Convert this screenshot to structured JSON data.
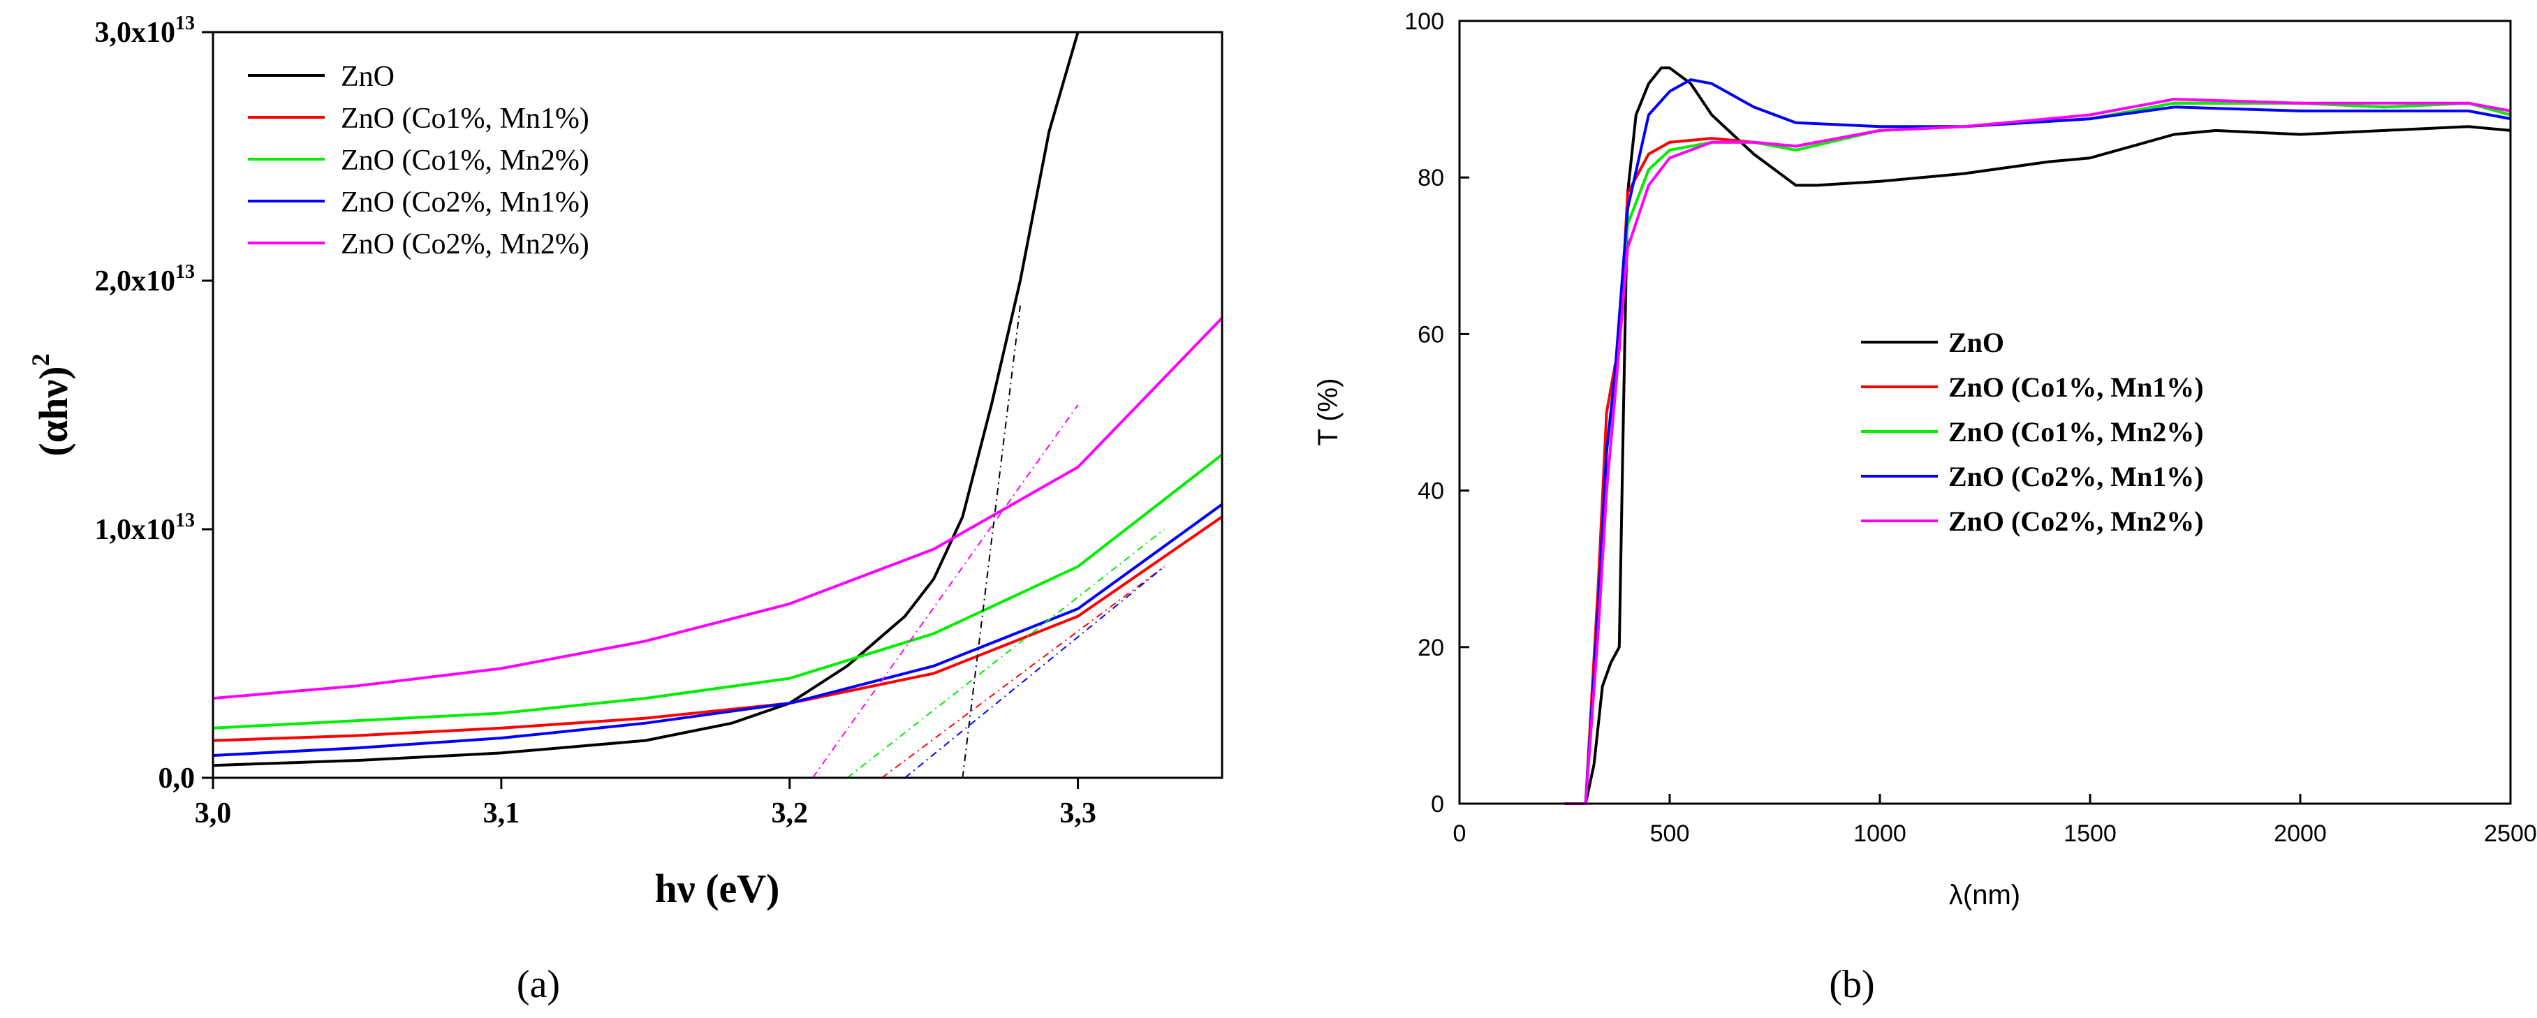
{
  "chart_data": [
    {
      "panel_label": "(a)",
      "type": "line",
      "title": "",
      "xlabel": "hν (eV)",
      "ylabel": "(αhν)",
      "ylabel_exponent": "2",
      "xlim": [
        3.0,
        3.35
      ],
      "ylim": [
        0,
        30000000000000.0
      ],
      "grid": false,
      "legend_position": "top-left",
      "x_ticks": [
        3.0,
        3.1,
        3.2,
        3.3
      ],
      "x_tick_labels": [
        "3,0",
        "3,1",
        "3,2",
        "3,3"
      ],
      "y_ticks": [
        0,
        10000000000000.0,
        20000000000000.0,
        30000000000000.0
      ],
      "y_tick_labels": [
        {
          "text": "0,0",
          "exp": ""
        },
        {
          "text": "1,0x10",
          "exp": "13"
        },
        {
          "text": "2,0x10",
          "exp": "13"
        },
        {
          "text": "3,0x10",
          "exp": "13"
        }
      ],
      "series": [
        {
          "name": "ZnO",
          "color": "#000000",
          "x": [
            3.0,
            3.05,
            3.1,
            3.15,
            3.18,
            3.2,
            3.22,
            3.24,
            3.25,
            3.26,
            3.27,
            3.28,
            3.29,
            3.3
          ],
          "y": [
            500000000000.0,
            700000000000.0,
            1000000000000.0,
            1500000000000.0,
            2200000000000.0,
            3000000000000.0,
            4500000000000.0,
            6500000000000.0,
            8000000000000.0,
            10500000000000.0,
            15000000000000.0,
            20000000000000.0,
            26000000000000.0,
            30000000000000.0
          ]
        },
        {
          "name": "ZnO (Co1%, Mn1%)",
          "color": "#ff0000",
          "x": [
            3.0,
            3.05,
            3.1,
            3.15,
            3.2,
            3.25,
            3.3,
            3.35
          ],
          "y": [
            1500000000000.0,
            1700000000000.0,
            2000000000000.0,
            2400000000000.0,
            3000000000000.0,
            4200000000000.0,
            6500000000000.0,
            10500000000000.0
          ]
        },
        {
          "name": "ZnO (Co1%, Mn2%)",
          "color": "#00ee00",
          "x": [
            3.0,
            3.05,
            3.1,
            3.15,
            3.2,
            3.25,
            3.3,
            3.35
          ],
          "y": [
            2000000000000.0,
            2300000000000.0,
            2600000000000.0,
            3200000000000.0,
            4000000000000.0,
            5800000000000.0,
            8500000000000.0,
            13000000000000.0
          ]
        },
        {
          "name": "ZnO (Co2%, Mn1%)",
          "color": "#0000ff",
          "x": [
            3.0,
            3.05,
            3.1,
            3.15,
            3.2,
            3.25,
            3.3,
            3.35
          ],
          "y": [
            900000000000.0,
            1200000000000.0,
            1600000000000.0,
            2200000000000.0,
            3000000000000.0,
            4500000000000.0,
            6800000000000.0,
            11000000000000.0
          ]
        },
        {
          "name": "ZnO (Co2%, Mn2%)",
          "color": "#ff00ff",
          "x": [
            3.0,
            3.05,
            3.1,
            3.15,
            3.2,
            3.25,
            3.3,
            3.35
          ],
          "y": [
            3200000000000.0,
            3700000000000.0,
            4400000000000.0,
            5500000000000.0,
            7000000000000.0,
            9200000000000.0,
            12500000000000.0,
            18500000000000.0
          ]
        }
      ],
      "tangent_lines": [
        {
          "name": "ZnO tangent",
          "color": "#000000",
          "x": [
            3.26,
            3.28
          ],
          "y": [
            0,
            19000000000000.0
          ]
        },
        {
          "name": "ZnO (Co1%, Mn1%) tangent",
          "color": "#ff0000",
          "x": [
            3.232,
            3.33
          ],
          "y": [
            0,
            8500000000000.0
          ]
        },
        {
          "name": "ZnO (Co1%, Mn2%) tangent",
          "color": "#00ee00",
          "x": [
            3.22,
            3.33
          ],
          "y": [
            0,
            10000000000000.0
          ]
        },
        {
          "name": "ZnO (Co2%, Mn1%) tangent",
          "color": "#0000ff",
          "x": [
            3.24,
            3.33
          ],
          "y": [
            0,
            8500000000000.0
          ]
        },
        {
          "name": "ZnO (Co2%, Mn2%) tangent",
          "color": "#ff00ff",
          "x": [
            3.208,
            3.3
          ],
          "y": [
            0,
            15000000000000.0
          ]
        }
      ]
    },
    {
      "panel_label": "(b)",
      "type": "line",
      "title": "",
      "xlabel": "λ(nm)",
      "ylabel": "T (%)",
      "xlim": [
        0,
        2500
      ],
      "ylim": [
        0,
        100
      ],
      "grid": false,
      "legend_position": "center-right",
      "x_ticks": [
        0,
        500,
        1000,
        1500,
        2000,
        2500
      ],
      "x_tick_labels": [
        "0",
        "500",
        "1000",
        "1500",
        "2000",
        "2500"
      ],
      "y_ticks": [
        0,
        20,
        40,
        60,
        80,
        100
      ],
      "y_tick_labels": [
        "0",
        "20",
        "40",
        "60",
        "80",
        "100"
      ],
      "series": [
        {
          "name": "ZnO",
          "color": "#000000",
          "x": [
            250,
            300,
            320,
            340,
            360,
            380,
            390,
            400,
            420,
            450,
            480,
            500,
            550,
            600,
            700,
            800,
            850,
            1000,
            1200,
            1400,
            1500,
            1600,
            1700,
            1800,
            2000,
            2200,
            2400,
            2500
          ],
          "y": [
            0,
            0,
            5,
            15,
            18,
            20,
            50,
            78,
            88,
            92,
            94,
            94,
            92,
            88,
            83,
            79,
            79,
            79.5,
            80.5,
            82,
            82.5,
            84,
            85.5,
            86,
            85.5,
            86,
            86.5,
            86
          ]
        },
        {
          "name": "ZnO (Co1%, Mn1%)",
          "color": "#ff0000",
          "x": [
            250,
            300,
            330,
            350,
            370,
            380,
            400,
            450,
            500,
            600,
            700,
            800,
            1000,
            1200,
            1500,
            1700,
            2000,
            2200,
            2400,
            2500
          ],
          "y": [
            0,
            0,
            28,
            50,
            56,
            58,
            78,
            83,
            84.5,
            85,
            84.5,
            84,
            86,
            86.5,
            87.5,
            89.5,
            89.5,
            89,
            89.5,
            88
          ]
        },
        {
          "name": "ZnO (Co1%, Mn2%)",
          "color": "#00ee00",
          "x": [
            250,
            300,
            330,
            350,
            370,
            400,
            450,
            500,
            600,
            700,
            800,
            1000,
            1200,
            1500,
            1700,
            2000,
            2200,
            2400,
            2500
          ],
          "y": [
            0,
            0,
            25,
            45,
            55,
            74,
            81,
            83.5,
            84.5,
            84.5,
            83.5,
            86,
            86.5,
            87.5,
            89.5,
            89.5,
            89,
            89.5,
            88
          ]
        },
        {
          "name": "ZnO (Co2%, Mn1%)",
          "color": "#0000ff",
          "x": [
            250,
            300,
            330,
            350,
            370,
            400,
            450,
            500,
            550,
            600,
            700,
            800,
            1000,
            1200,
            1500,
            1700,
            2000,
            2200,
            2400,
            2500
          ],
          "y": [
            0,
            0,
            25,
            45,
            55,
            76,
            88,
            91,
            92.5,
            92,
            89,
            87,
            86.5,
            86.5,
            87.5,
            89,
            88.5,
            88.5,
            88.5,
            87.5
          ]
        },
        {
          "name": "ZnO (Co2%, Mn2%)",
          "color": "#ff00ff",
          "x": [
            250,
            300,
            330,
            350,
            370,
            400,
            450,
            500,
            600,
            700,
            800,
            1000,
            1200,
            1500,
            1700,
            2000,
            2200,
            2400,
            2500
          ],
          "y": [
            0,
            0,
            22,
            40,
            52,
            71,
            79,
            82.5,
            84.5,
            84.5,
            84,
            86,
            86.5,
            88,
            90,
            89.5,
            89.5,
            89.5,
            88.5
          ]
        }
      ]
    }
  ]
}
